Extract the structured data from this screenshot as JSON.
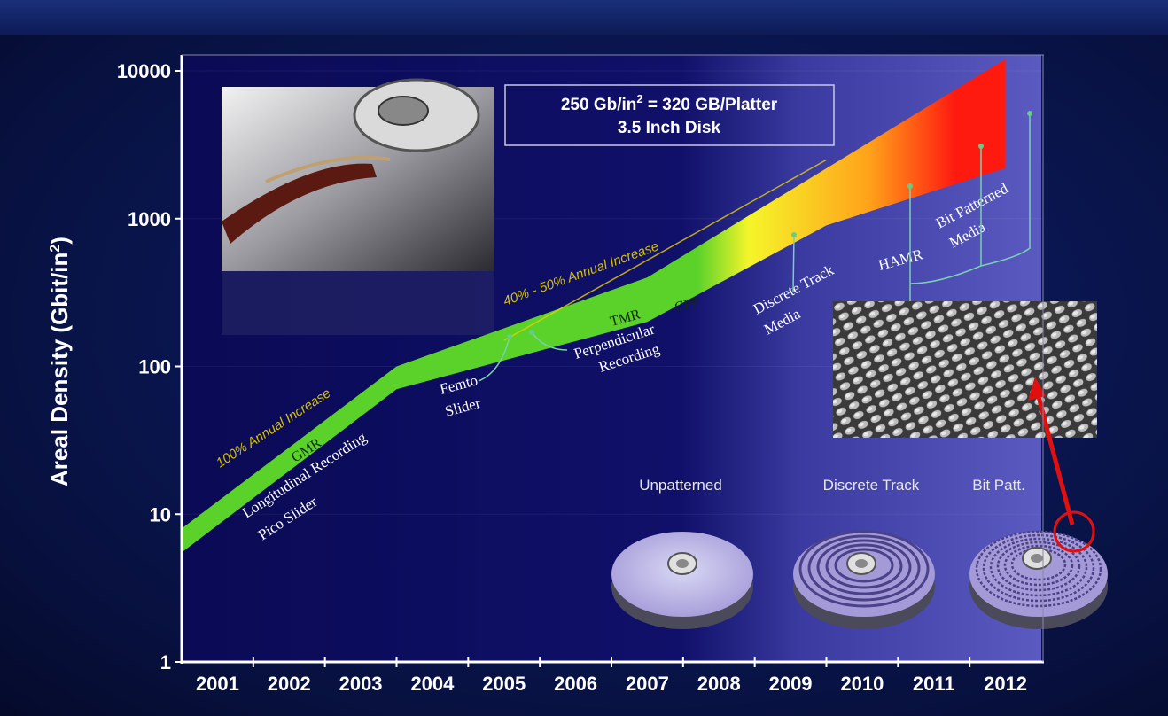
{
  "chart_data": {
    "type": "area",
    "title": "",
    "xlabel": "",
    "ylabel": "Areal Density (Gbit/in",
    "ylabel_sup": "2",
    "ylabel_end": ")",
    "y_scale": "log",
    "ylim": [
      1,
      10000
    ],
    "y_ticks": [
      {
        "value": 1,
        "label": "1"
      },
      {
        "value": 10,
        "label": "10"
      },
      {
        "value": 100,
        "label": "100"
      },
      {
        "value": 1000,
        "label": "1000"
      },
      {
        "value": 10000,
        "label": "10000"
      }
    ],
    "x_categories": [
      "2001",
      "2002",
      "2003",
      "2004",
      "2005",
      "2006",
      "2007",
      "2008",
      "2009",
      "2010",
      "2011",
      "2012"
    ],
    "series": [
      {
        "technology_band_upper": [
          {
            "x": 2001.0,
            "y": 8
          },
          {
            "x": 2004.0,
            "y": 100
          },
          {
            "x": 2007.5,
            "y": 400
          },
          {
            "x": 2012.5,
            "y": 12000
          }
        ],
        "technology_band_lower": [
          {
            "x": 2001.0,
            "y": 5.5
          },
          {
            "x": 2004.0,
            "y": 70
          },
          {
            "x": 2007.5,
            "y": 200
          },
          {
            "x": 2010.0,
            "y": 900
          },
          {
            "x": 2012.5,
            "y": 2200
          }
        ]
      }
    ],
    "band_colors": [
      "#5bd22a",
      "#f5f52a",
      "#ffa21a",
      "#ff1a10"
    ],
    "annotations": {
      "info_line1_pre": "250 Gb/in",
      "info_line1_sup": "2",
      "info_line1_post": " = 320 GB/Platter",
      "info_line2": "3.5 Inch Disk",
      "rate1": "100% Annual Increase",
      "rate2": "40% - 50% Annual Increase",
      "gmr": "GMR",
      "tmr": "TMR",
      "cpp": "CPP",
      "longitudinal_1": "Longitudinal Recording",
      "longitudinal_2": "Pico Slider",
      "femto_1": "Femto",
      "femto_2": "Slider",
      "perpendicular_1": "Perpendicular",
      "perpendicular_2": "Recording",
      "discrete_1": "Discrete Track",
      "discrete_2": "Media",
      "hamr": "HAMR",
      "bpm_1": "Bit Patterned",
      "bpm_2": "Media"
    },
    "disks": [
      {
        "label": "Unpatterned"
      },
      {
        "label": "Discrete Track"
      },
      {
        "label": "Bit Patt."
      }
    ]
  }
}
